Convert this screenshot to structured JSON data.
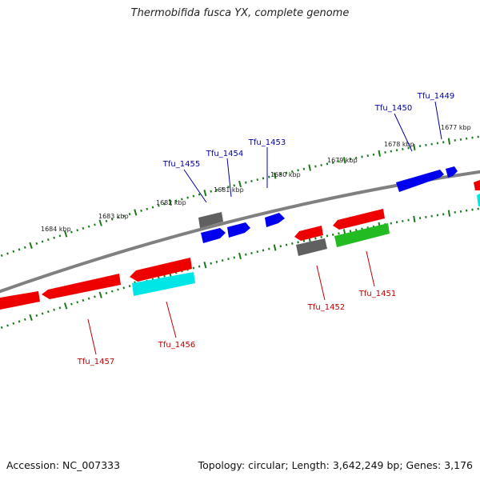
{
  "title": "Thermobifida fusca YX, complete genome",
  "footer": {
    "accession": "Accession: NC_007333",
    "topology": "Topology: circular; Length: 3,642,249 bp; Genes: 3,176"
  },
  "colors": {
    "backbone": "#808080",
    "tick": "#1a7a1a",
    "forward_label": "#0000aa",
    "reverse_label": "#c00000",
    "blue": "#0000ee",
    "red": "#ee0000",
    "gray": "#606060",
    "green": "#22bb22",
    "cyan": "#00e6e6"
  },
  "kbp_labels": [
    "1677 kbp",
    "1678 kbp",
    "1679 kbp",
    "1680 kbp",
    "1681 kbp",
    "1682 kbp",
    "1683 kbp",
    "1684 kbp"
  ],
  "gene_labels_forward": [
    "Tfu_1449",
    "Tfu_1450",
    "Tfu_1453",
    "Tfu_1454",
    "Tfu_1455"
  ],
  "gene_labels_reverse": [
    "Tfu_1451",
    "Tfu_1452",
    "Tfu_1456",
    "Tfu_1457"
  ]
}
